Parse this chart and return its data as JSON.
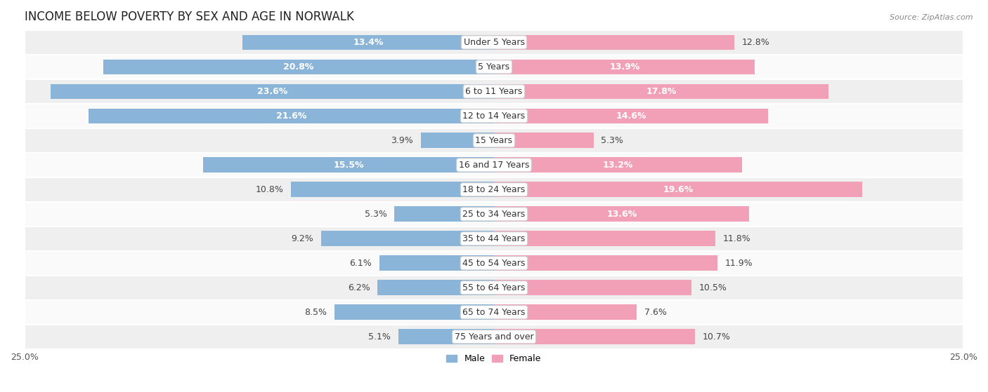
{
  "title": "INCOME BELOW POVERTY BY SEX AND AGE IN NORWALK",
  "source": "Source: ZipAtlas.com",
  "categories": [
    "Under 5 Years",
    "5 Years",
    "6 to 11 Years",
    "12 to 14 Years",
    "15 Years",
    "16 and 17 Years",
    "18 to 24 Years",
    "25 to 34 Years",
    "35 to 44 Years",
    "45 to 54 Years",
    "55 to 64 Years",
    "65 to 74 Years",
    "75 Years and over"
  ],
  "male_values": [
    13.4,
    20.8,
    23.6,
    21.6,
    3.9,
    15.5,
    10.8,
    5.3,
    9.2,
    6.1,
    6.2,
    8.5,
    5.1
  ],
  "female_values": [
    12.8,
    13.9,
    17.8,
    14.6,
    5.3,
    13.2,
    19.6,
    13.6,
    11.8,
    11.9,
    10.5,
    7.6,
    10.7
  ],
  "male_color": "#8ab4d8",
  "female_color": "#f2a0b8",
  "bar_height": 0.62,
  "xlim": 25.0,
  "row_bg_even": "#efefef",
  "row_bg_odd": "#fafafa",
  "title_fontsize": 12,
  "label_fontsize": 9,
  "category_fontsize": 9,
  "axis_fontsize": 9,
  "source_fontsize": 8,
  "white_label_threshold": 13.0,
  "legend_male_color": "#8ab4d8",
  "legend_female_color": "#f2a0b8"
}
